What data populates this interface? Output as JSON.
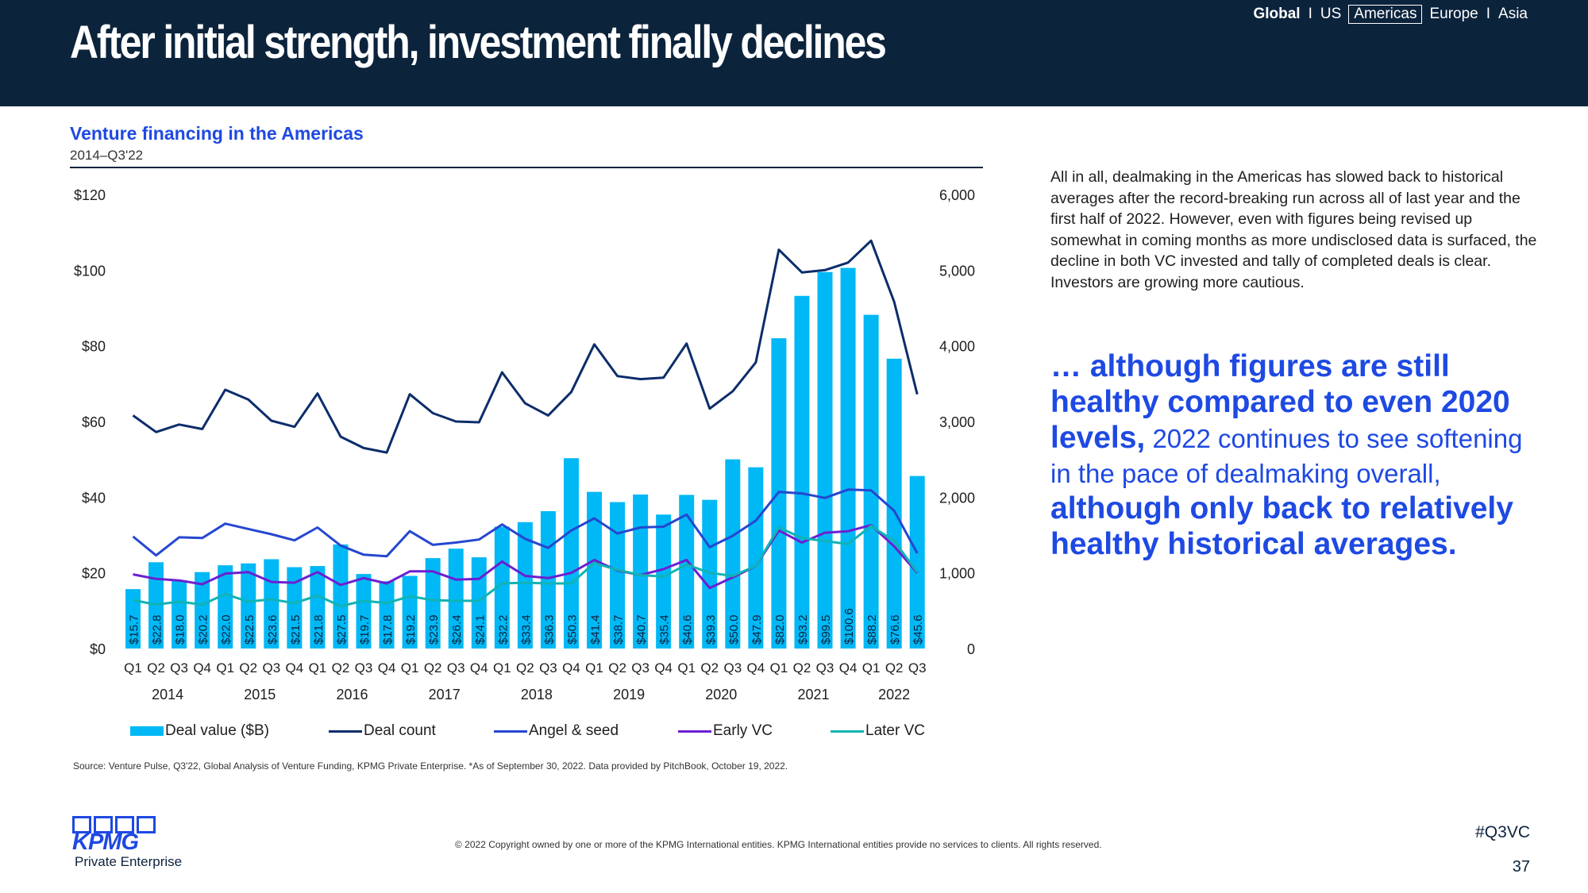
{
  "header": {
    "title": "After initial strength, investment finally declines",
    "regions": [
      "Global",
      "US",
      "Americas",
      "Europe",
      "Asia"
    ],
    "separator": "I",
    "active_region": "Americas"
  },
  "chart_data": {
    "type": "bar",
    "title": "Venture financing in the Americas",
    "subtitle": "2014–Q3'22",
    "quarters": [
      "Q1",
      "Q2",
      "Q3",
      "Q4",
      "Q1",
      "Q2",
      "Q3",
      "Q4",
      "Q1",
      "Q2",
      "Q3",
      "Q4",
      "Q1",
      "Q2",
      "Q3",
      "Q4",
      "Q1",
      "Q2",
      "Q3",
      "Q4",
      "Q1",
      "Q2",
      "Q3",
      "Q4",
      "Q1",
      "Q2",
      "Q3",
      "Q4",
      "Q1",
      "Q2",
      "Q3",
      "Q4",
      "Q1",
      "Q2",
      "Q3"
    ],
    "years": [
      "2014",
      "2015",
      "2016",
      "2017",
      "2018",
      "2019",
      "2020",
      "2021",
      "2022"
    ],
    "left_axis": {
      "ticks": [
        "$0",
        "$20",
        "$40",
        "$60",
        "$80",
        "$100",
        "$120"
      ],
      "ylim": [
        0,
        120
      ]
    },
    "right_axis": {
      "ticks": [
        "0",
        "1,000",
        "2,000",
        "3,000",
        "4,000",
        "5,000",
        "6,000"
      ],
      "ylim": [
        0,
        6000
      ]
    },
    "bar_series": {
      "name": "Deal value ($B)",
      "color": "#00b8f5",
      "values": [
        15.7,
        22.8,
        18.0,
        20.2,
        22.0,
        22.5,
        23.6,
        21.5,
        21.8,
        27.5,
        19.7,
        17.8,
        19.2,
        23.9,
        26.4,
        24.1,
        32.2,
        33.4,
        36.3,
        50.3,
        41.4,
        38.7,
        40.7,
        35.4,
        40.6,
        39.3,
        50.0,
        47.9,
        82.0,
        93.2,
        99.5,
        100.6,
        88.2,
        76.6,
        45.6
      ],
      "labels": [
        "$15.7",
        "$22.8",
        "$18.0",
        "$20.2",
        "$22.0",
        "$22.5",
        "$23.6",
        "$21.5",
        "$21.8",
        "$27.5",
        "$19.7",
        "$17.8",
        "$19.2",
        "$23.9",
        "$26.4",
        "$24.1",
        "$32.2",
        "$33.4",
        "$36.3",
        "$50.3",
        "$41.4",
        "$38.7",
        "$40.7",
        "$35.4",
        "$40.6",
        "$39.3",
        "$50.0",
        "$47.9",
        "$82.0",
        "$93.2",
        "$99.5",
        "$100.6",
        "$88.2",
        "$76.6",
        "$45.6"
      ]
    },
    "line_series": [
      {
        "name": "Deal count",
        "color": "#0c2d6b",
        "values": [
          3080,
          2860,
          2960,
          2900,
          3420,
          3290,
          3010,
          2930,
          3370,
          2800,
          2650,
          2590,
          3360,
          3110,
          3000,
          2990,
          3650,
          3240,
          3080,
          3390,
          4020,
          3600,
          3560,
          3580,
          4030,
          3170,
          3400,
          3780,
          5270,
          4970,
          5000,
          5100,
          5390,
          4580,
          3360
        ]
      },
      {
        "name": "Angel & seed",
        "color": "#2547d0",
        "values": [
          1480,
          1230,
          1470,
          1460,
          1650,
          1580,
          1510,
          1430,
          1600,
          1360,
          1240,
          1220,
          1550,
          1370,
          1400,
          1440,
          1640,
          1450,
          1330,
          1560,
          1720,
          1520,
          1600,
          1610,
          1770,
          1340,
          1490,
          1690,
          2070,
          2050,
          1990,
          2100,
          2090,
          1820,
          1260
        ]
      },
      {
        "name": "Early VC",
        "color": "#6c1fd1",
        "values": [
          980,
          920,
          900,
          850,
          990,
          1010,
          880,
          870,
          1010,
          840,
          930,
          860,
          1020,
          1020,
          910,
          920,
          1150,
          960,
          930,
          1000,
          1170,
          1030,
          970,
          1050,
          1170,
          800,
          940,
          1090,
          1560,
          1400,
          1530,
          1550,
          1630,
          1350,
          1000
        ]
      },
      {
        "name": "Later VC",
        "color": "#11b3b3",
        "values": [
          640,
          580,
          620,
          580,
          720,
          620,
          650,
          600,
          700,
          560,
          630,
          600,
          690,
          640,
          630,
          630,
          860,
          870,
          860,
          860,
          1130,
          1040,
          970,
          950,
          1110,
          1000,
          960,
          1090,
          1600,
          1460,
          1420,
          1380,
          1620,
          1420,
          1010
        ]
      }
    ]
  },
  "source": "Source: Venture Pulse, Q3'22, Global Analysis of Venture Funding, KPMG Private Enterprise. *As of September 30, 2022. Data provided by PitchBook, October 19, 2022.",
  "body_text": "All in all, dealmaking in the Americas has slowed back to historical averages after the record-breaking run across all of last year and the first half of 2022. However, even with figures being revised up somewhat in coming months as more undisclosed data is surfaced, the decline in both VC invested and tally of completed deals is clear. Investors are growing more cautious.",
  "callout": {
    "part1": "… although figures are still healthy compared to even 2020 levels,",
    "part2": " 2022 continues to see softening in the pace of dealmaking overall, ",
    "part3": "although only back to relatively healthy historical averages."
  },
  "footer": {
    "copyright": "© 2022 Copyright owned by one or more of the KPMG International entities. KPMG International entities provide no services to clients. All rights reserved.",
    "hashtag": "#Q3VC",
    "page_number": "37",
    "logo_text": "KPMG",
    "logo_subtext": "Private Enterprise"
  },
  "colors": {
    "navy": "#0c233c",
    "brand_blue": "#1e49e2",
    "bar_cyan": "#00b8f5"
  }
}
